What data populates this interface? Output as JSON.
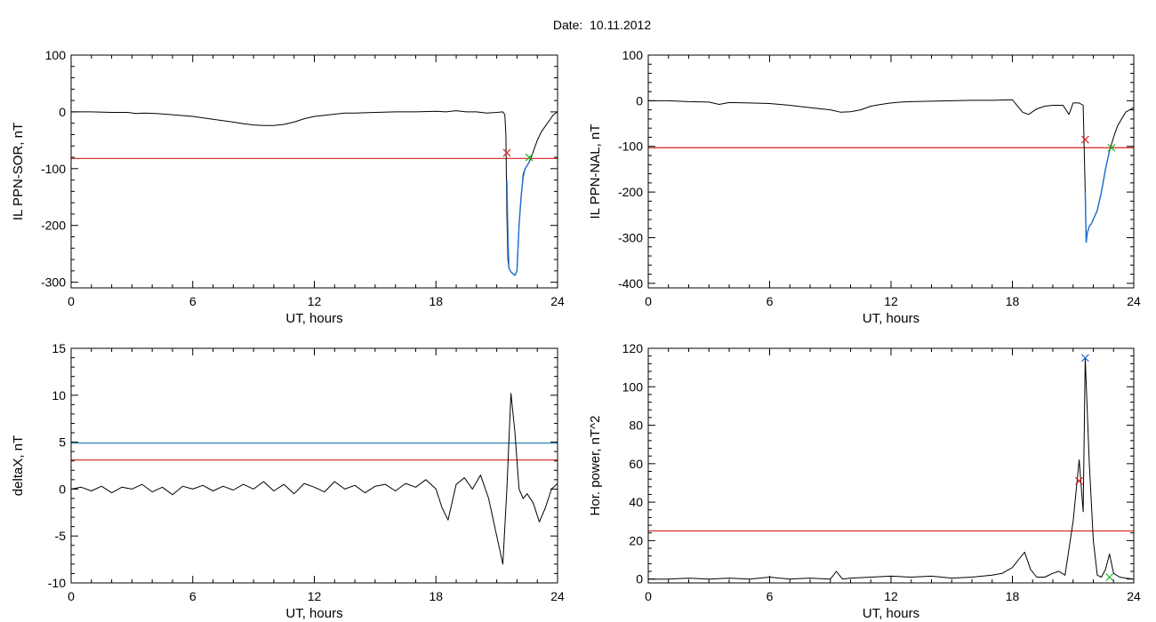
{
  "page_title": "Date:  10.11.2012",
  "chart_data": [
    {
      "type": "line",
      "id": "ppn-sor",
      "xlabel": "UT, hours",
      "ylabel": "IL PPN-SOR, nT",
      "xlim": [
        0,
        24
      ],
      "ylim": [
        -310,
        100
      ],
      "xticks": [
        0,
        6,
        12,
        18,
        24
      ],
      "yticks": [
        -300,
        -200,
        -100,
        0,
        100
      ],
      "grid": false,
      "series": [
        {
          "color": "#000000",
          "x": [
            0,
            1,
            2,
            2.8,
            3.2,
            3.6,
            4.2,
            5,
            6,
            7,
            8,
            8.5,
            9,
            9.5,
            10,
            10.5,
            11,
            11.5,
            12,
            12.5,
            13,
            13.5,
            14,
            15,
            16,
            17,
            18,
            18.5,
            19,
            19.5,
            20,
            20.5,
            21,
            21.3,
            21.4,
            21.45,
            21.5,
            21.55,
            21.6,
            21.7,
            21.8,
            21.9,
            22.0,
            22.1,
            22.2,
            22.3,
            22.4,
            22.5,
            22.6,
            22.7,
            22.8,
            23.0,
            23.2,
            23.4,
            23.6,
            23.8,
            24
          ],
          "y": [
            0,
            0,
            -1,
            -1,
            -3,
            -2,
            -3,
            -5,
            -8,
            -13,
            -18,
            -21,
            -23,
            -24,
            -24,
            -22,
            -18,
            -12,
            -8,
            -6,
            -4,
            -2,
            -2,
            -1,
            0,
            0,
            1,
            0,
            2,
            0,
            0,
            -2,
            -1,
            0,
            -5,
            -40,
            -180,
            -260,
            -275,
            -282,
            -285,
            -288,
            -280,
            -200,
            -150,
            -110,
            -100,
            -95,
            -88,
            -80,
            -70,
            -50,
            -35,
            -25,
            -15,
            -5,
            0
          ]
        },
        {
          "color": "#1f6fd0",
          "x": [
            21.5,
            21.55,
            21.6,
            21.7,
            21.8,
            21.9,
            22.0,
            22.1,
            22.2,
            22.3,
            22.4,
            22.5,
            22.6
          ],
          "y": [
            -120,
            -220,
            -275,
            -282,
            -285,
            -288,
            -280,
            -200,
            -150,
            -115,
            -100,
            -95,
            -88
          ]
        }
      ],
      "hlines": [
        {
          "y": -82,
          "color": "#d62020"
        }
      ],
      "markers": [
        {
          "x": 21.5,
          "y": -72,
          "color": "#d62020",
          "symbol": "x"
        },
        {
          "x": 22.6,
          "y": -80,
          "color": "#20b020",
          "symbol": "x"
        }
      ]
    },
    {
      "type": "line",
      "id": "ppn-nal",
      "xlabel": "UT, hours",
      "ylabel": "IL PPN-NAL, nT",
      "xlim": [
        0,
        24
      ],
      "ylim": [
        -410,
        100
      ],
      "xticks": [
        0,
        6,
        12,
        18,
        24
      ],
      "yticks": [
        -400,
        -300,
        -200,
        -100,
        0,
        100
      ],
      "grid": false,
      "series": [
        {
          "color": "#000000",
          "x": [
            0,
            1,
            2,
            3,
            3.5,
            4,
            5,
            6,
            7,
            8,
            9,
            9.5,
            10,
            10.5,
            11,
            11.5,
            12,
            12.5,
            13,
            14,
            15,
            16,
            17,
            18,
            18.5,
            18.8,
            19.2,
            19.6,
            20,
            20.5,
            20.8,
            21,
            21.3,
            21.5,
            21.6,
            21.65,
            21.7,
            21.8,
            21.9,
            22.0,
            22.2,
            22.4,
            22.6,
            22.8,
            23.0,
            23.2,
            23.4,
            23.6,
            23.8,
            24
          ],
          "y": [
            0,
            0,
            -2,
            -3,
            -8,
            -4,
            -5,
            -6,
            -10,
            -15,
            -20,
            -25,
            -24,
            -20,
            -12,
            -8,
            -5,
            -3,
            -2,
            -1,
            0,
            1,
            1,
            2,
            -25,
            -30,
            -18,
            -12,
            -10,
            -10,
            -30,
            -5,
            -5,
            -10,
            -200,
            -310,
            -290,
            -275,
            -270,
            -260,
            -240,
            -200,
            -150,
            -110,
            -80,
            -55,
            -40,
            -25,
            -20,
            -15
          ]
        },
        {
          "color": "#1f6fd0",
          "x": [
            21.6,
            21.65,
            21.7,
            21.8,
            21.9,
            22.0,
            22.2,
            22.4,
            22.6,
            22.8
          ],
          "y": [
            -200,
            -310,
            -290,
            -275,
            -270,
            -260,
            -240,
            -200,
            -150,
            -110
          ]
        }
      ],
      "hlines": [
        {
          "y": -103,
          "color": "#d62020"
        }
      ],
      "markers": [
        {
          "x": 21.6,
          "y": -85,
          "color": "#d62020",
          "symbol": "x"
        },
        {
          "x": 22.9,
          "y": -103,
          "color": "#20b020",
          "symbol": "x"
        }
      ]
    },
    {
      "type": "line",
      "id": "deltax",
      "xlabel": "UT, hours",
      "ylabel": "deltaX, nT",
      "xlim": [
        0,
        24
      ],
      "ylim": [
        -10,
        15
      ],
      "xticks": [
        0,
        6,
        12,
        18,
        24
      ],
      "yticks": [
        -10,
        -5,
        0,
        5,
        10,
        15
      ],
      "grid": false,
      "series": [
        {
          "color": "#000000",
          "x": [
            0,
            0.5,
            1,
            1.5,
            2,
            2.5,
            3,
            3.5,
            4,
            4.5,
            5,
            5.5,
            6,
            6.5,
            7,
            7.5,
            8,
            8.5,
            9,
            9.5,
            10,
            10.5,
            11,
            11.5,
            12,
            12.5,
            13,
            13.5,
            14,
            14.5,
            15,
            15.5,
            16,
            16.5,
            17,
            17.5,
            18,
            18.3,
            18.6,
            19,
            19.4,
            19.8,
            20.2,
            20.6,
            21,
            21.3,
            21.5,
            21.7,
            21.9,
            22.1,
            22.3,
            22.5,
            22.8,
            23.1,
            23.4,
            23.7,
            24
          ],
          "y": [
            0,
            0.2,
            -0.2,
            0.3,
            -0.4,
            0.2,
            0,
            0.5,
            -0.3,
            0.2,
            -0.6,
            0.3,
            0,
            0.4,
            -0.2,
            0.3,
            -0.1,
            0.5,
            0,
            0.8,
            -0.2,
            0.5,
            -0.5,
            0.6,
            0.2,
            -0.3,
            0.8,
            0,
            0.4,
            -0.4,
            0.3,
            0.5,
            -0.2,
            0.6,
            0.2,
            1.0,
            0,
            -2.0,
            -3.3,
            0.5,
            1.2,
            0,
            1.5,
            -1.0,
            -5.0,
            -8.0,
            0,
            10.2,
            6.0,
            0,
            -1.0,
            -0.5,
            -1.5,
            -3.5,
            -2.0,
            0,
            0.6
          ]
        }
      ],
      "hlines": [
        {
          "y": 4.9,
          "color": "#2a8ab8"
        },
        {
          "y": 3.1,
          "color": "#d62020"
        }
      ],
      "markers": []
    },
    {
      "type": "line",
      "id": "hor-power",
      "xlabel": "UT, hours",
      "ylabel": "Hor. power, nT^2",
      "xlim": [
        0,
        24
      ],
      "ylim": [
        -2,
        120
      ],
      "xticks": [
        0,
        6,
        12,
        18,
        24
      ],
      "yticks": [
        0,
        20,
        40,
        60,
        80,
        100,
        120
      ],
      "grid": false,
      "series": [
        {
          "color": "#000000",
          "x": [
            0,
            1,
            2,
            3,
            4,
            5,
            6,
            7,
            8,
            9,
            9.3,
            9.6,
            10,
            11,
            12,
            13,
            14,
            15,
            16,
            17,
            17.5,
            18,
            18.3,
            18.6,
            18.9,
            19.2,
            19.6,
            20,
            20.3,
            20.6,
            21,
            21.3,
            21.5,
            21.6,
            21.8,
            22.0,
            22.2,
            22.4,
            22.6,
            22.8,
            23.0,
            23.3,
            23.6,
            24
          ],
          "y": [
            0,
            0,
            0.5,
            0,
            0.5,
            0,
            1,
            0,
            0.5,
            0,
            4,
            0,
            0.5,
            1,
            1.5,
            1,
            1.5,
            0.5,
            1,
            2,
            3,
            6,
            10,
            14,
            5,
            1,
            1,
            3,
            4,
            2,
            30,
            62,
            35,
            115,
            60,
            20,
            2,
            1,
            5,
            13,
            3,
            1,
            0.5,
            0
          ]
        }
      ],
      "hlines": [
        {
          "y": 25,
          "color": "#d62020"
        }
      ],
      "markers": [
        {
          "x": 21.3,
          "y": 51,
          "color": "#d62020",
          "symbol": "x"
        },
        {
          "x": 21.6,
          "y": 115,
          "color": "#1f6fd0",
          "symbol": "x"
        },
        {
          "x": 22.8,
          "y": 1,
          "color": "#20b020",
          "symbol": "x"
        }
      ]
    }
  ]
}
